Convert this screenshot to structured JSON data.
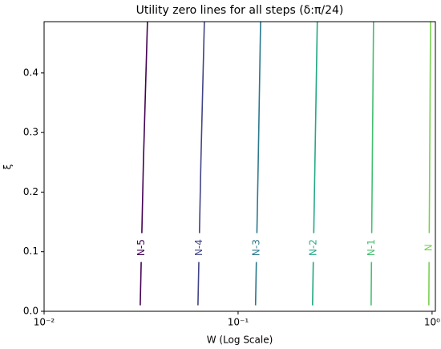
{
  "chart_data": {
    "type": "line",
    "title": "Utility zero lines for all steps (δ:π/24)",
    "xlabel": "W (Log Scale)",
    "ylabel": "ξ",
    "xscale": "log",
    "xlim": [
      0.01,
      1.04
    ],
    "ylim": [
      0,
      0.486
    ],
    "xticks": [
      {
        "value": 0.01,
        "label": "10⁻²"
      },
      {
        "value": 0.1,
        "label": "10⁻¹"
      },
      {
        "value": 1,
        "label": "10⁰"
      }
    ],
    "yticks": [
      {
        "value": 0,
        "label": "0.0"
      },
      0.1,
      0.2,
      0.3,
      0.4
    ],
    "series": [
      {
        "name": "N-5",
        "color": "#440154",
        "x": [
          0.0313,
          0.0325,
          0.0341
        ],
        "y": [
          0.01,
          0.25,
          0.486
        ]
      },
      {
        "name": "N-4",
        "color": "#414487",
        "x": [
          0.0621,
          0.0643,
          0.067
        ],
        "y": [
          0.01,
          0.25,
          0.486
        ]
      },
      {
        "name": "N-3",
        "color": "#2a788e",
        "x": [
          0.123,
          0.127,
          0.1306
        ],
        "y": [
          0.01,
          0.25,
          0.486
        ]
      },
      {
        "name": "N-2",
        "color": "#22a884",
        "x": [
          0.242,
          0.249,
          0.256
        ],
        "y": [
          0.01,
          0.25,
          0.486
        ]
      },
      {
        "name": "N-1",
        "color": "#44bf70",
        "x": [
          0.485,
          0.492,
          0.499
        ],
        "y": [
          0.01,
          0.25,
          0.486
        ]
      },
      {
        "name": "N",
        "color": "#7ad151",
        "x": [
          0.962,
          0.972,
          0.982
        ],
        "y": [
          0.01,
          0.25,
          0.486
        ]
      }
    ]
  }
}
